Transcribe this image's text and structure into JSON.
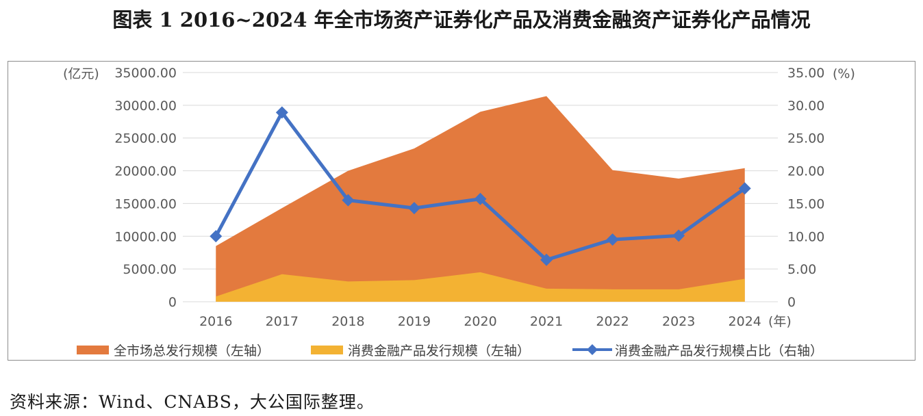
{
  "title": "图表 1  2016~2024 年全市场资产证券化产品及消费金融资产证券化产品情况",
  "source": "资料来源：Wind、CNABS，大公国际整理。",
  "colors": {
    "total_area": "#E37A3E",
    "consumer_area": "#F3B233",
    "ratio_line": "#4472C4",
    "grid": "#d9d9d9",
    "axis_text": "#595959"
  },
  "chart_data": {
    "type": "area",
    "categories": [
      "2016",
      "2017",
      "2018",
      "2019",
      "2020",
      "2021",
      "2022",
      "2023",
      "2024"
    ],
    "series": [
      {
        "name": "全市场总发行规模（左轴）",
        "type": "area",
        "axis": "left",
        "values": [
          8500,
          14300,
          20000,
          23400,
          29000,
          31400,
          20100,
          18800,
          20400
        ]
      },
      {
        "name": "消费金融产品发行规模（左轴）",
        "type": "area",
        "axis": "left",
        "values": [
          800,
          4200,
          3100,
          3300,
          4500,
          2000,
          1900,
          1900,
          3500
        ]
      },
      {
        "name": "消费金融产品发行规模占比（右轴）",
        "type": "line",
        "axis": "right",
        "marker": "diamond",
        "values": [
          10.0,
          28.9,
          15.5,
          14.3,
          15.7,
          6.4,
          9.5,
          10.1,
          17.3
        ]
      }
    ],
    "y_left": {
      "unit": "(亿元)",
      "ylim": [
        0,
        35000
      ],
      "ticks": [
        "0",
        "5000.00",
        "10000.00",
        "15000.00",
        "20000.00",
        "25000.00",
        "30000.00",
        "35000.00"
      ]
    },
    "y_right": {
      "unit": "(%)",
      "ylim": [
        0,
        35
      ],
      "ticks": [
        "0",
        "5.00",
        "10.00",
        "15.00",
        "20.00",
        "25.00",
        "30.00",
        "35.00"
      ]
    },
    "x_unit": "(年)",
    "grid": true,
    "legend_position": "bottom"
  }
}
